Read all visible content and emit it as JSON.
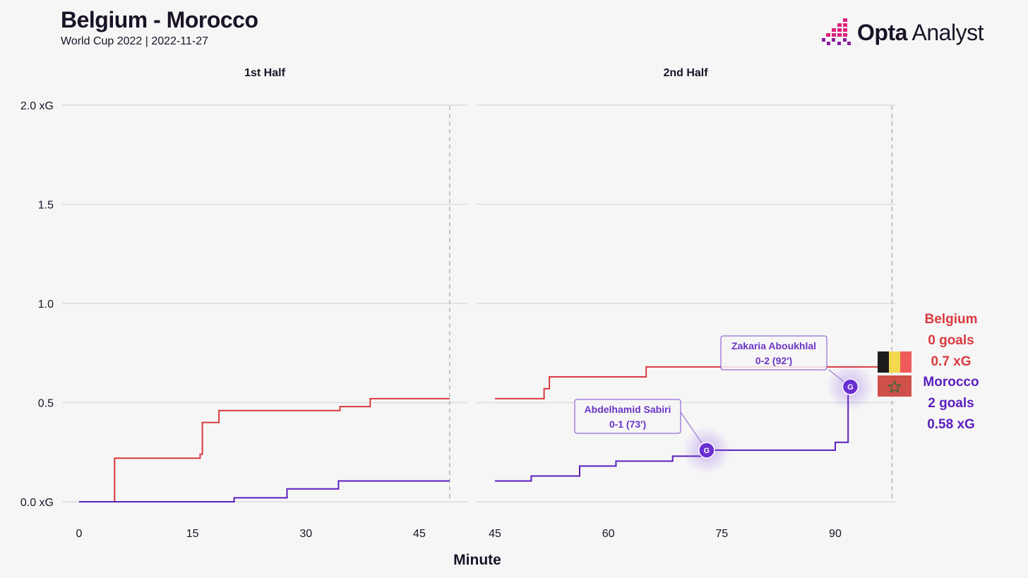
{
  "header": {
    "title": "Belgium - Morocco",
    "subtitle": "World Cup 2022 | 2022-11-27",
    "brand_bold": "Opta",
    "brand_light": " Analyst"
  },
  "colors": {
    "belgium": "#d93a3f",
    "morocco": "#5b1fbf",
    "grid": "#dcdcdc",
    "background": "#f6f6f6"
  },
  "chart_data": {
    "type": "line",
    "step": true,
    "xlabel": "Minute",
    "ylabel": "",
    "ylim": [
      0,
      2
    ],
    "y_ticks": [
      {
        "value": 0,
        "label": "0.0 xG"
      },
      {
        "value": 0.5,
        "label": "0.5"
      },
      {
        "value": 1.0,
        "label": "1.0"
      },
      {
        "value": 1.5,
        "label": "1.5"
      },
      {
        "value": 2.0,
        "label": "2.0 xG"
      }
    ],
    "grid": true,
    "panels": [
      {
        "title": "1st Half",
        "xlim": [
          0,
          49
        ],
        "x_ticks": [
          0,
          15,
          30,
          45
        ],
        "period_end": 49,
        "series": [
          {
            "team": "Belgium",
            "points": [
              [
                0,
                0
              ],
              [
                4.7,
                0.22
              ],
              [
                16,
                0.24
              ],
              [
                16.3,
                0.4
              ],
              [
                18.5,
                0.46
              ],
              [
                34.5,
                0.48
              ],
              [
                38.5,
                0.52
              ],
              [
                49,
                0.52
              ]
            ]
          },
          {
            "team": "Morocco",
            "points": [
              [
                0,
                0
              ],
              [
                20.5,
                0.02
              ],
              [
                27.5,
                0.065
              ],
              [
                34.3,
                0.105
              ],
              [
                49,
                0.105
              ]
            ]
          }
        ]
      },
      {
        "title": "2nd Half",
        "xlim": [
          45,
          98
        ],
        "x_ticks": [
          45,
          60,
          75,
          90
        ],
        "period_end": 97.5,
        "series": [
          {
            "team": "Belgium",
            "points": [
              [
                45,
                0.52
              ],
              [
                51.5,
                0.57
              ],
              [
                52.2,
                0.63
              ],
              [
                65,
                0.68
              ],
              [
                97.5,
                0.7
              ]
            ]
          },
          {
            "team": "Morocco",
            "points": [
              [
                45,
                0.105
              ],
              [
                49.8,
                0.13
              ],
              [
                56.2,
                0.18
              ],
              [
                61,
                0.205
              ],
              [
                68.5,
                0.23
              ],
              [
                73,
                0.26
              ],
              [
                90,
                0.3
              ],
              [
                91.7,
                0.58
              ],
              [
                92,
                0.58
              ]
            ]
          }
        ]
      }
    ],
    "goals": [
      {
        "team": "Morocco",
        "player": "Abdelhamid Sabiri",
        "score": "0-1 (73')",
        "minute": 73,
        "xg": 0.26,
        "marker": "G"
      },
      {
        "team": "Morocco",
        "player": "Zakaria Aboukhlal",
        "score": "0-2 (92')",
        "minute": 92,
        "xg": 0.58,
        "marker": "G"
      }
    ],
    "teams": [
      {
        "name": "Belgium",
        "goals": "0 goals",
        "xg": "0.7 xG"
      },
      {
        "name": "Morocco",
        "goals": "2 goals",
        "xg": "0.58 xG"
      }
    ]
  }
}
